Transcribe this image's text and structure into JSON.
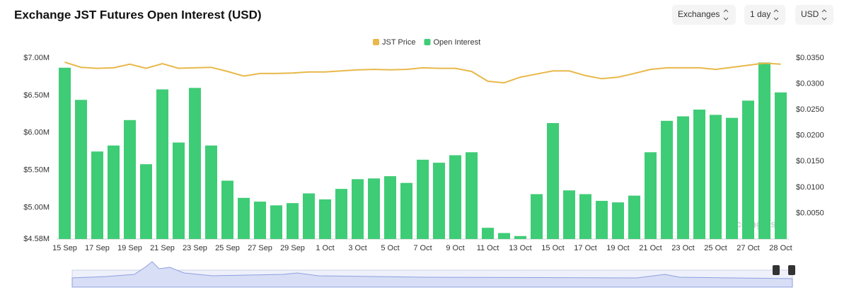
{
  "chart_data": {
    "type": "bar-line",
    "title": "Exchange JST Futures Open Interest (USD)",
    "controls": [
      "Exchanges",
      "1 day",
      "USD"
    ],
    "watermark": "coinglass",
    "categories": [
      "15 Sep",
      null,
      "17 Sep",
      null,
      "19 Sep",
      null,
      "21 Sep",
      null,
      "23 Sep",
      null,
      "25 Sep",
      null,
      "27 Sep",
      null,
      "29 Sep",
      null,
      "1 Oct",
      null,
      "3 Oct",
      null,
      "5 Oct",
      null,
      "7 Oct",
      null,
      "9 Oct",
      null,
      "11 Oct",
      null,
      "13 Oct",
      null,
      "15 Oct",
      null,
      "17 Oct",
      null,
      "19 Oct",
      null,
      "21 Oct",
      null,
      "23 Oct",
      null,
      "25 Oct",
      null,
      "27 Oct",
      null,
      "28 Oct"
    ],
    "series": [
      {
        "name": "JST Price",
        "color": "#e8b84a",
        "kind": "line",
        "axis": "y2",
        "values": [
          0.0342,
          0.0332,
          0.033,
          0.0331,
          0.0338,
          0.033,
          0.0339,
          0.033,
          0.0331,
          0.0332,
          0.0324,
          0.0315,
          0.032,
          0.032,
          0.0321,
          0.0323,
          0.0323,
          0.0325,
          0.0327,
          0.0328,
          0.0327,
          0.0328,
          0.0331,
          0.033,
          0.033,
          0.0324,
          0.0305,
          0.0302,
          0.0313,
          0.0319,
          0.0325,
          0.0325,
          0.0316,
          0.031,
          0.0313,
          0.032,
          0.0328,
          0.0331,
          0.0331,
          0.0331,
          0.0328,
          0.0332,
          0.0336,
          0.034,
          0.0338
        ]
      },
      {
        "name": "Open Interest",
        "color": "#3fcc76",
        "kind": "bar",
        "values": [
          6870000,
          6440000,
          5750000,
          5830000,
          6170000,
          5580000,
          6580000,
          5870000,
          6600000,
          5830000,
          5360000,
          5130000,
          5080000,
          5030000,
          5060000,
          5190000,
          5110000,
          5250000,
          5380000,
          5390000,
          5420000,
          5330000,
          5640000,
          5600000,
          5700000,
          5740000,
          4730000,
          4660000,
          4620000,
          5180000,
          6130000,
          5230000,
          5180000,
          5090000,
          5070000,
          5160000,
          5740000,
          6160000,
          6220000,
          6310000,
          6240000,
          6200000,
          6430000,
          6940000,
          6540000
        ]
      }
    ],
    "ylim": [
      4580000,
      7000000
    ],
    "yticks": [
      {
        "value": 4580000,
        "label": "$4.58M"
      },
      {
        "value": 5000000,
        "label": "$5.00M"
      },
      {
        "value": 5500000,
        "label": "$5.50M"
      },
      {
        "value": 6000000,
        "label": "$6.00M"
      },
      {
        "value": 6500000,
        "label": "$6.50M"
      },
      {
        "value": 7000000,
        "label": "$7.00M"
      }
    ],
    "y2lim": [
      0,
      0.035
    ],
    "y2ticks": [
      {
        "value": 0.005,
        "label": "$0.0050"
      },
      {
        "value": 0.01,
        "label": "$0.0100"
      },
      {
        "value": 0.015,
        "label": "$0.0150"
      },
      {
        "value": 0.02,
        "label": "$0.0200"
      },
      {
        "value": 0.025,
        "label": "$0.0250"
      },
      {
        "value": 0.03,
        "label": "$0.0300"
      },
      {
        "value": 0.035,
        "label": "$0.0350"
      }
    ],
    "grid": false,
    "legend": "top"
  }
}
